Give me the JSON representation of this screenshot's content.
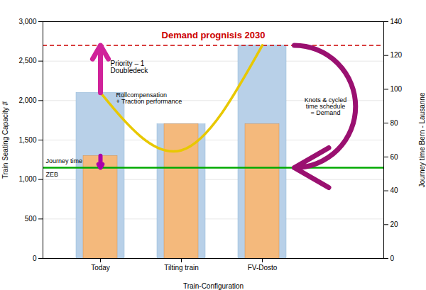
{
  "chart_data": {
    "type": "bar",
    "title": "Demand prognisis 2030",
    "xlabel": "Train-Configuration",
    "ylabel": "Train Seating Capacity #",
    "y2label": "Journey time Bern - Lausanne",
    "categories": [
      "Today",
      "Tilting train",
      "FV-Dosto"
    ],
    "series": [
      {
        "type": "bar",
        "color": "#b8d0e8",
        "values": [
          2100,
          1700,
          2700
        ]
      },
      {
        "type": "bar",
        "color": "#f4b97c",
        "values": [
          1300,
          1700,
          1700
        ]
      },
      {
        "type": "line",
        "color": "#e8c800",
        "values": [
          2100,
          1370,
          2700
        ]
      }
    ],
    "reference_lines": [
      {
        "value": 2700,
        "color": "#cc0000",
        "line_style": "dashed"
      },
      {
        "value": 1150,
        "color": "#00aa00",
        "line_style": "solid"
      }
    ],
    "annotations": [
      "Journey time",
      "ZEB",
      "Priority – 1\nDoubledeck",
      "Rollcompensation\n+ Traction performance",
      "Knots & cycled\ntime schedule\n= Demand"
    ],
    "ylim": [
      0,
      3000
    ],
    "yticks": [
      0,
      500,
      1000,
      1500,
      2000,
      2500,
      3000
    ],
    "y2lim": [
      0,
      140
    ],
    "y2ticks": [
      0,
      20,
      40,
      60,
      80,
      100,
      120,
      140
    ],
    "grid": true
  }
}
